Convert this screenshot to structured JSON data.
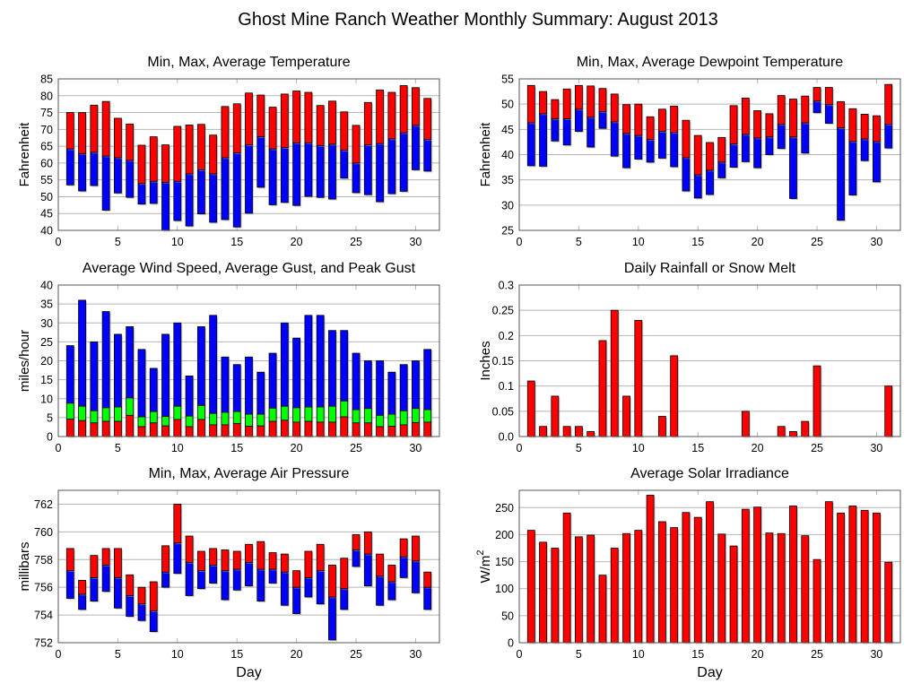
{
  "title": "Ghost Mine Ranch Weather Monthly Summary: August 2013",
  "colors": {
    "red": "#ff0000",
    "blue": "#0000ff",
    "green": "#00ff00",
    "grid": "#b4b4b4"
  },
  "chart_data": [
    {
      "type": "bar",
      "title": "Min, Max, Average Temperature",
      "ylabel": "Fahrenheit",
      "xlabel": "",
      "xlim": [
        0,
        32
      ],
      "ylim": [
        40,
        85
      ],
      "xticks": [
        "0",
        "5",
        "10",
        "15",
        "20",
        "25",
        "30"
      ],
      "yticks": [
        "40",
        "45",
        "50",
        "55",
        "60",
        "65",
        "70",
        "75",
        "80",
        "85"
      ],
      "mode": "range",
      "x": [
        1,
        2,
        3,
        4,
        5,
        6,
        7,
        8,
        9,
        10,
        11,
        12,
        13,
        14,
        15,
        16,
        17,
        18,
        19,
        20,
        21,
        22,
        23,
        24,
        25,
        26,
        27,
        28,
        29,
        30,
        31
      ],
      "series": [
        {
          "name": "Min",
          "values": [
            53.5,
            51.7,
            53.3,
            46,
            51.1,
            49.8,
            47.8,
            48,
            40,
            42.9,
            41.3,
            44.9,
            42.4,
            43.2,
            41,
            45.1,
            52.8,
            47.6,
            48.3,
            47.4,
            50.1,
            49.8,
            49.3,
            55.5,
            51.2,
            50.6,
            48.5,
            50.9,
            51.6,
            58,
            57.6
          ]
        },
        {
          "name": "Average",
          "values": [
            64.2,
            62.8,
            63.2,
            62.1,
            61.6,
            60.8,
            53.9,
            54.6,
            54.3,
            54.6,
            56.8,
            58,
            56.8,
            61.6,
            63,
            65.4,
            67.8,
            64.2,
            64.6,
            66,
            66,
            65.2,
            65.6,
            63.8,
            60,
            65.4,
            65.8,
            67.2,
            69,
            71.2,
            67
          ]
        },
        {
          "name": "Max",
          "values": [
            75,
            75,
            77.2,
            78.3,
            73.3,
            71.6,
            65.3,
            67.8,
            65.4,
            70.9,
            71.3,
            71.5,
            68.3,
            76.8,
            77.6,
            80.8,
            80.2,
            76.6,
            80.5,
            81.4,
            81,
            77.1,
            78.4,
            75.2,
            71.2,
            78,
            81.7,
            81,
            83,
            82.4,
            79.2
          ]
        }
      ]
    },
    {
      "type": "bar",
      "title": "Min, Max, Average Dewpoint Temperature",
      "ylabel": "Fahrenheit",
      "xlabel": "",
      "xlim": [
        0,
        32
      ],
      "ylim": [
        25,
        55
      ],
      "xticks": [
        "0",
        "5",
        "10",
        "15",
        "20",
        "25",
        "30"
      ],
      "yticks": [
        "25",
        "30",
        "35",
        "40",
        "45",
        "50",
        "55"
      ],
      "mode": "range",
      "x": [
        1,
        2,
        3,
        4,
        5,
        6,
        7,
        8,
        9,
        10,
        11,
        12,
        13,
        14,
        15,
        16,
        17,
        18,
        19,
        20,
        21,
        22,
        23,
        24,
        25,
        26,
        27,
        28,
        29,
        30,
        31
      ],
      "series": [
        {
          "name": "Min",
          "values": [
            37.8,
            37.7,
            42.7,
            41.9,
            44.6,
            41.5,
            45.2,
            39.7,
            37.4,
            39.1,
            38.5,
            39.3,
            37.6,
            32.8,
            31.4,
            32.1,
            35.4,
            37.5,
            38.6,
            37.4,
            40,
            41.2,
            31.3,
            40.3,
            48.3,
            46.2,
            27,
            32,
            38.8,
            34.6,
            41.3
          ]
        },
        {
          "name": "Average",
          "values": [
            46.3,
            48.1,
            47.1,
            47.1,
            49,
            47.4,
            48.5,
            46.5,
            44.2,
            43.8,
            43,
            44.6,
            44.4,
            39.4,
            36,
            36.9,
            38.5,
            42.1,
            44,
            43.3,
            43.5,
            46,
            43.5,
            46.3,
            50.6,
            49.9,
            45.3,
            42.6,
            43.1,
            42.6,
            46
          ]
        },
        {
          "name": "Max",
          "values": [
            53.7,
            52.5,
            50.9,
            53,
            53.7,
            53.6,
            53.1,
            52,
            49.9,
            50,
            47.5,
            49,
            49.6,
            46.8,
            43.8,
            42.4,
            43.4,
            49.7,
            51.2,
            48.7,
            48.1,
            51.7,
            51,
            51.6,
            53.3,
            53.3,
            50.5,
            49.1,
            48,
            47.7,
            53.9
          ]
        }
      ]
    },
    {
      "type": "bar",
      "title": "Average Wind Speed, Average Gust, and Peak Gust",
      "ylabel": "miles/hour",
      "xlabel": "",
      "xlim": [
        0,
        32
      ],
      "ylim": [
        0,
        40
      ],
      "xticks": [
        "0",
        "5",
        "10",
        "15",
        "20",
        "25",
        "30"
      ],
      "yticks": [
        "0",
        "5",
        "10",
        "15",
        "20",
        "25",
        "30",
        "35",
        "40"
      ],
      "mode": "stack3",
      "x": [
        1,
        2,
        3,
        4,
        5,
        6,
        7,
        8,
        9,
        10,
        11,
        12,
        13,
        14,
        15,
        16,
        17,
        18,
        19,
        20,
        21,
        22,
        23,
        24,
        25,
        26,
        27,
        28,
        29,
        30,
        31
      ],
      "series": [
        {
          "name": "Average Wind Speed",
          "values": [
            4.6,
            4.2,
            3.6,
            4,
            4,
            5.6,
            2.6,
            3.6,
            2.8,
            4.5,
            2.6,
            4.5,
            3.1,
            3.1,
            3.4,
            2.7,
            2.8,
            4,
            4.3,
            3.8,
            4,
            3.8,
            3.8,
            5.2,
            3.6,
            3.6,
            2.6,
            2.7,
            3.1,
            3.7,
            3.8
          ]
        },
        {
          "name": "Average Gust",
          "values": [
            8.8,
            8,
            6.8,
            7.6,
            7.8,
            10.2,
            5.2,
            6.6,
            5.3,
            8,
            5.4,
            8.2,
            6.1,
            6.4,
            6.6,
            5.9,
            5.9,
            7.5,
            8,
            7.6,
            7.8,
            7.8,
            8,
            9.4,
            7.1,
            7.4,
            5.6,
            5.9,
            6.8,
            7.4,
            7.1
          ]
        },
        {
          "name": "Peak Gust",
          "values": [
            24,
            36,
            25,
            33,
            27,
            29,
            23,
            18,
            27,
            30,
            16,
            29,
            32,
            21,
            19,
            21,
            17,
            22,
            30,
            26,
            32,
            32,
            28,
            28,
            22,
            20,
            20,
            17,
            19,
            20,
            23
          ]
        }
      ]
    },
    {
      "type": "bar",
      "title": "Daily Rainfall or Snow Melt",
      "ylabel": "Inches",
      "xlabel": "",
      "xlim": [
        0,
        32
      ],
      "ylim": [
        0,
        0.3
      ],
      "xticks": [
        "0",
        "5",
        "10",
        "15",
        "20",
        "25",
        "30"
      ],
      "yticks": [
        "0.0",
        "0.05",
        "0.1",
        "0.15",
        "0.2",
        "0.25",
        "0.3"
      ],
      "mode": "single",
      "x": [
        1,
        2,
        3,
        4,
        5,
        6,
        7,
        8,
        9,
        10,
        11,
        12,
        13,
        14,
        15,
        16,
        17,
        18,
        19,
        20,
        21,
        22,
        23,
        24,
        25,
        26,
        27,
        28,
        29,
        30,
        31
      ],
      "series": [
        {
          "name": "Rainfall",
          "values": [
            0.11,
            0.02,
            0.08,
            0.02,
            0.02,
            0.01,
            0.19,
            0.25,
            0.08,
            0.23,
            0,
            0.04,
            0.16,
            0,
            0,
            0,
            0,
            0,
            0.05,
            0,
            0,
            0.02,
            0.01,
            0.03,
            0.14,
            0,
            0,
            0,
            0,
            0,
            0.1
          ]
        }
      ]
    },
    {
      "type": "bar",
      "title": "Min, Max, Average Air Pressure",
      "ylabel": "millibars",
      "xlabel": "Day",
      "xlim": [
        0,
        32
      ],
      "ylim": [
        752,
        763
      ],
      "xticks": [
        "0",
        "5",
        "10",
        "15",
        "20",
        "25",
        "30"
      ],
      "yticks": [
        "752",
        "754",
        "756",
        "758",
        "760",
        "762"
      ],
      "ytick_values": [
        752,
        754,
        756,
        758,
        760,
        762
      ],
      "mode": "range",
      "x": [
        1,
        2,
        3,
        4,
        5,
        6,
        7,
        8,
        9,
        10,
        11,
        12,
        13,
        14,
        15,
        16,
        17,
        18,
        19,
        20,
        21,
        22,
        23,
        24,
        25,
        26,
        27,
        28,
        29,
        30,
        31
      ],
      "series": [
        {
          "name": "Min",
          "values": [
            755.2,
            754.4,
            755,
            755.7,
            754.5,
            753.9,
            753.6,
            752.8,
            756,
            757,
            755.4,
            755.9,
            756.3,
            755.1,
            755.8,
            756.1,
            755,
            756.3,
            754.7,
            754.1,
            755.3,
            754.8,
            752.2,
            754.4,
            757.5,
            756.1,
            754.7,
            755.1,
            756.7,
            755.6,
            754.4
          ]
        },
        {
          "name": "Average",
          "values": [
            757.2,
            755.5,
            756.7,
            757.6,
            756.7,
            755.4,
            754.8,
            754.3,
            757.1,
            759.2,
            757.8,
            757.2,
            757.6,
            757.2,
            757.3,
            757.8,
            757.3,
            757.3,
            757.1,
            756,
            756.7,
            757.2,
            755.3,
            755.9,
            758.7,
            758.4,
            756.8,
            756.4,
            758.2,
            757.9,
            756
          ]
        },
        {
          "name": "Max",
          "values": [
            758.8,
            756.5,
            758.3,
            758.8,
            758.8,
            756.9,
            756,
            756.4,
            759,
            762,
            759.7,
            758.6,
            758.8,
            758.7,
            758.6,
            759.1,
            759.3,
            758.5,
            758.4,
            757.2,
            758.6,
            759.1,
            757.6,
            758.1,
            759.8,
            760,
            758.4,
            757.6,
            759.5,
            759.7,
            757.1
          ]
        }
      ]
    },
    {
      "type": "bar",
      "title": "Average Solar Irradiance",
      "ylabel": "W/m",
      "ylabel_sup": "2",
      "xlabel": "Day",
      "xlim": [
        0,
        32
      ],
      "ylim": [
        0,
        282
      ],
      "xticks": [
        "0",
        "5",
        "10",
        "15",
        "20",
        "25",
        "30"
      ],
      "yticks": [
        "0",
        "50",
        "100",
        "150",
        "200",
        "250"
      ],
      "mode": "single",
      "x": [
        1,
        2,
        3,
        4,
        5,
        6,
        7,
        8,
        9,
        10,
        11,
        12,
        13,
        14,
        15,
        16,
        17,
        18,
        19,
        20,
        21,
        22,
        23,
        24,
        25,
        26,
        27,
        28,
        29,
        30,
        31
      ],
      "series": [
        {
          "name": "Solar Irradiance",
          "values": [
            208,
            186,
            175,
            240,
            196,
            199,
            125,
            175,
            202,
            208,
            273,
            224,
            213,
            241,
            232,
            261,
            201,
            179,
            247,
            251,
            203,
            202,
            253,
            198,
            154,
            261,
            240,
            253,
            245,
            240,
            149
          ]
        }
      ]
    }
  ]
}
